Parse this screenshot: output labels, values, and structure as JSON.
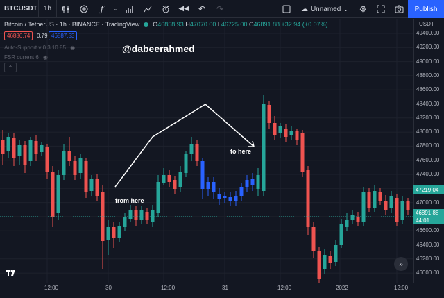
{
  "toolbar": {
    "symbol": "BTCUSDT",
    "interval": "1h",
    "icons": [
      "candles-icon",
      "add-icon",
      "indicators-icon",
      "chevron-down-icon",
      "compare-icon",
      "chart-type-icon",
      "alert-icon",
      "replay-icon",
      "undo-icon",
      "redo-icon"
    ],
    "layout_name": "Unnamed",
    "publish_label": "Publish"
  },
  "legend": {
    "symbol_text": "Bitcoin / TetherUS · 1h · BINANCE · TradingView",
    "o": "46858.93",
    "h": "47070.00",
    "l": "46725.00",
    "c": "46891.88",
    "change": "+32.94 (+0.07%)",
    "sell_price": "46886.74",
    "spread": "0.79",
    "buy_price": "46887.53",
    "indicator_1": "Auto-Support v 0.3 10 85",
    "indicator_2": "FSR current 6"
  },
  "watermark": "@dabeerahmed",
  "annotations": {
    "from_label": "from here",
    "to_label": "to here"
  },
  "price_axis": {
    "unit": "USDT",
    "labels": [
      "49400.00",
      "49200.00",
      "49000.00",
      "48800.00",
      "48600.00",
      "48400.00",
      "48200.00",
      "48000.00",
      "47800.00",
      "47600.00",
      "47400.00",
      "47200.00",
      "47000.00",
      "46800.00",
      "46600.00",
      "46400.00",
      "46200.00",
      "46000.00"
    ],
    "current_tag": "47219.04",
    "last_price_tag": "46891.88",
    "countdown": "44:01"
  },
  "time_axis": {
    "labels": [
      "12:00",
      "30",
      "12:00",
      "31",
      "12:00",
      "2022",
      "12:00"
    ]
  },
  "colors": {
    "up": "#26a69a",
    "down": "#ef5350",
    "highlight": "#2962ff",
    "background": "#131722"
  }
}
